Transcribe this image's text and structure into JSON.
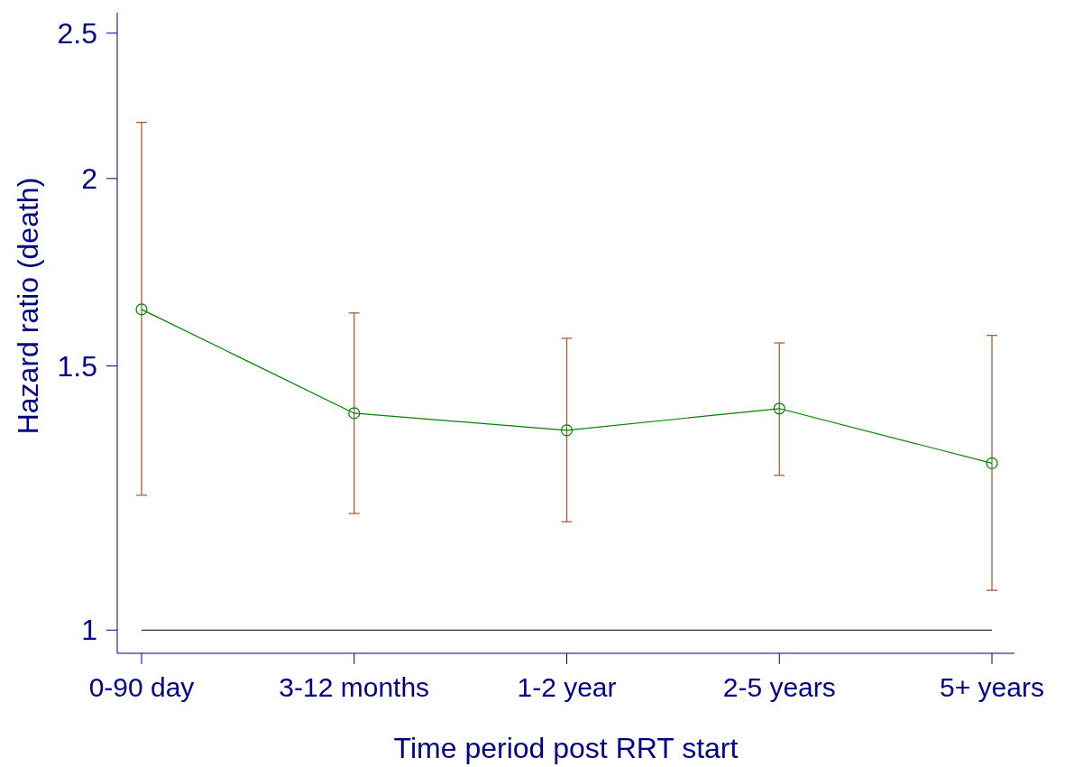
{
  "chart_data": {
    "type": "line",
    "xlabel": "Time period post RRT start",
    "ylabel": "Hazard ratio (death)",
    "categories": [
      "0-90 day",
      "3-12 months",
      "1-2 year",
      "2-5 years",
      "5+ years"
    ],
    "series": [
      {
        "color": "#008000",
        "values": [
          1.636,
          1.395,
          1.359,
          1.405,
          1.292
        ],
        "errors": [
          [
            1.23,
            2.18
          ],
          [
            1.196,
            1.627
          ],
          [
            1.181,
            1.565
          ],
          [
            1.268,
            1.554
          ],
          [
            1.063,
            1.572
          ]
        ]
      }
    ],
    "log": true,
    "ylim": [
      0.965,
      2.58
    ],
    "yticks": [
      1,
      1.5,
      2,
      2.5
    ],
    "marker": "circle",
    "line_style": "solid",
    "grid": false,
    "ref_lines": [
      {
        "axis": "y",
        "value": 1,
        "color": "#000000"
      }
    ]
  }
}
